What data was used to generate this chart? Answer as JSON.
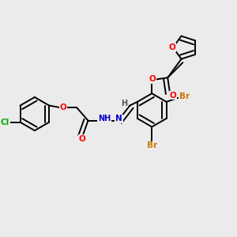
{
  "bg_color": "#ebebeb",
  "atom_colors": {
    "O": "#ff0000",
    "N": "#0000cc",
    "Cl": "#00aa00",
    "Br": "#cc7700",
    "C": "#000000",
    "H": "#555555"
  },
  "bond_lw": 1.4,
  "dbl_sep": 0.006,
  "figsize": [
    3.0,
    3.0
  ],
  "dpi": 100
}
